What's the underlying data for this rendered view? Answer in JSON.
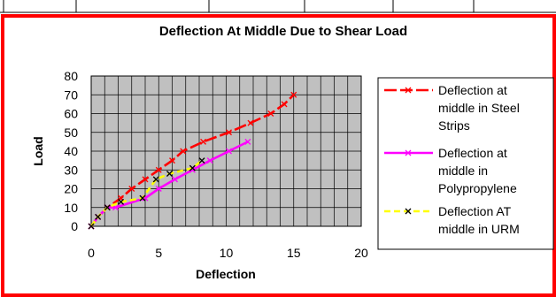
{
  "chart_data": {
    "type": "line",
    "title": "Deflection At Middle Due to Shear Load",
    "xlabel": "Deflection",
    "ylabel": "Load",
    "xlim": [
      0,
      20
    ],
    "ylim": [
      0,
      80
    ],
    "x_ticks": [
      0,
      5,
      10,
      15,
      20
    ],
    "y_ticks": [
      0,
      10,
      20,
      30,
      40,
      50,
      60,
      70,
      80
    ],
    "grid": true,
    "legend_position": "right",
    "plot_background": "#c0c0c0",
    "frame_color": "#ff0000",
    "series": [
      {
        "name": "Deflection at middle in Steel Strips",
        "color": "#ff0000",
        "dash": "long-dash",
        "points": [
          [
            0,
            0
          ],
          [
            0.5,
            5
          ],
          [
            1.2,
            10
          ],
          [
            2.2,
            15
          ],
          [
            3,
            20
          ],
          [
            4,
            25
          ],
          [
            5,
            30
          ],
          [
            6,
            35
          ],
          [
            6.8,
            40
          ],
          [
            8.3,
            45
          ],
          [
            10.2,
            50
          ],
          [
            11.8,
            55
          ],
          [
            13.3,
            60
          ],
          [
            14.3,
            65
          ],
          [
            15,
            70
          ]
        ]
      },
      {
        "name": "Deflection at middle in Polypropylene",
        "color": "#ff00ff",
        "dash": "solid",
        "points": [
          [
            0,
            0
          ],
          [
            0.5,
            5
          ],
          [
            1.2,
            10
          ],
          [
            1.8,
            10
          ],
          [
            4,
            15
          ],
          [
            5,
            20
          ],
          [
            6.2,
            25
          ],
          [
            7.5,
            30
          ],
          [
            8.8,
            35
          ],
          [
            10.2,
            40
          ],
          [
            11.6,
            45
          ]
        ]
      },
      {
        "name": "Deflection AT middle in URM",
        "color": "#ffff00",
        "dash": "dash",
        "points": [
          [
            0,
            0
          ],
          [
            0.5,
            5
          ],
          [
            1.2,
            10
          ],
          [
            2.2,
            13
          ],
          [
            3.8,
            15
          ],
          [
            4.8,
            25
          ],
          [
            5.8,
            28
          ],
          [
            7.5,
            31
          ],
          [
            8.2,
            35
          ]
        ]
      }
    ],
    "legend": [
      {
        "lines": [
          "Deflection at",
          "middle in Steel",
          "Strips"
        ]
      },
      {
        "lines": [
          "Deflection at",
          "middle in",
          "Polypropylene"
        ]
      },
      {
        "lines": [
          "Deflection AT",
          "middle in URM"
        ]
      }
    ]
  }
}
